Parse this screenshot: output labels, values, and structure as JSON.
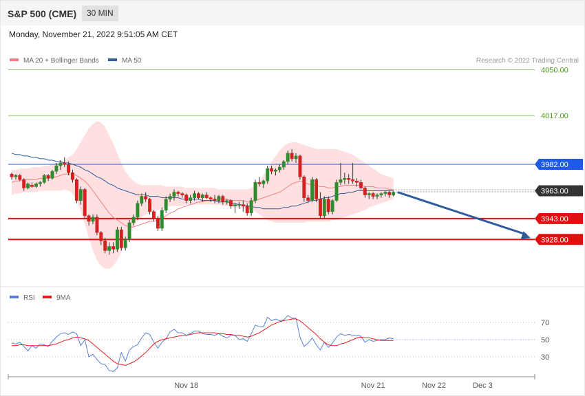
{
  "header": {
    "title": "S&P 500 (CME)",
    "timeframe": "30 MIN"
  },
  "timestamp": "Monday, November 21, 2022 9:51:05 AM CET",
  "legend": [
    {
      "label": "MA 20 + Bollinger Bands",
      "color": "#f08080"
    },
    {
      "label": "MA 50",
      "color": "#2f5a9e"
    }
  ],
  "copyright": "Research © 2022 Trading Central",
  "rsi_legend": [
    {
      "label": "RSI",
      "color": "#5b7fd6"
    },
    {
      "label": "9MA",
      "color": "#e02020"
    }
  ],
  "chart_data": {
    "type": "candlestick",
    "price_range": [
      3897,
      4070
    ],
    "levels": [
      {
        "value": 4050.0,
        "label": "4050.00",
        "kind": "resistance-green",
        "color": "#8cc26a"
      },
      {
        "value": 4017.0,
        "label": "4017.00",
        "kind": "resistance-green",
        "color": "#8cc26a"
      },
      {
        "value": 3982.0,
        "label": "3982.00",
        "kind": "pivot",
        "color": "#1e5ae6"
      },
      {
        "value": 3963.0,
        "label": "3963.00",
        "kind": "last-price",
        "color": "#333333"
      },
      {
        "value": 3943.0,
        "label": "3943.00",
        "kind": "support",
        "color": "#e01010"
      },
      {
        "value": 3928.0,
        "label": "3928.00",
        "kind": "support",
        "color": "#e01010"
      }
    ],
    "forecast_arrow": {
      "from": 3962,
      "to": 3929
    },
    "x_labels": [
      {
        "label": "Nov 18",
        "index": 43
      },
      {
        "label": "Nov 21",
        "index": 89
      },
      {
        "label": "Nov 22",
        "index": 104
      },
      {
        "label": "Dec 3",
        "index": 116
      }
    ],
    "candles": [
      [
        3975,
        3976,
        3971,
        3973
      ],
      [
        3973,
        3975,
        3971,
        3974
      ],
      [
        3974,
        3975,
        3970,
        3971
      ],
      [
        3971,
        3972,
        3963,
        3965
      ],
      [
        3965,
        3969,
        3964,
        3968
      ],
      [
        3967,
        3969,
        3965,
        3966
      ],
      [
        3966,
        3969,
        3965,
        3968
      ],
      [
        3968,
        3970,
        3966,
        3969
      ],
      [
        3969,
        3975,
        3968,
        3974
      ],
      [
        3974,
        3975,
        3970,
        3972
      ],
      [
        3972,
        3978,
        3971,
        3977
      ],
      [
        3977,
        3983,
        3975,
        3981
      ],
      [
        3981,
        3985,
        3978,
        3983
      ],
      [
        3983,
        3987,
        3980,
        3982
      ],
      [
        3982,
        3984,
        3974,
        3976
      ],
      [
        3976,
        3978,
        3969,
        3971
      ],
      [
        3971,
        3972,
        3954,
        3956
      ],
      [
        3956,
        3966,
        3953,
        3964
      ],
      [
        3964,
        3965,
        3943,
        3945
      ],
      [
        3945,
        3946,
        3938,
        3941
      ],
      [
        3941,
        3946,
        3939,
        3944
      ],
      [
        3944,
        3946,
        3931,
        3933
      ],
      [
        3933,
        3934,
        3924,
        3927
      ],
      [
        3927,
        3929,
        3918,
        3920
      ],
      [
        3920,
        3926,
        3917,
        3923
      ],
      [
        3923,
        3926,
        3918,
        3921
      ],
      [
        3921,
        3937,
        3919,
        3935
      ],
      [
        3935,
        3937,
        3920,
        3922
      ],
      [
        3922,
        3930,
        3920,
        3928
      ],
      [
        3928,
        3942,
        3926,
        3940
      ],
      [
        3940,
        3946,
        3938,
        3944
      ],
      [
        3944,
        3956,
        3942,
        3954
      ],
      [
        3954,
        3961,
        3952,
        3959
      ],
      [
        3959,
        3962,
        3955,
        3957
      ],
      [
        3957,
        3958,
        3946,
        3948
      ],
      [
        3948,
        3949,
        3941,
        3943
      ],
      [
        3943,
        3945,
        3934,
        3936
      ],
      [
        3936,
        3951,
        3934,
        3949
      ],
      [
        3949,
        3959,
        3947,
        3957
      ],
      [
        3957,
        3961,
        3955,
        3959
      ],
      [
        3959,
        3964,
        3956,
        3962
      ],
      [
        3962,
        3963,
        3959,
        3961
      ],
      [
        3961,
        3962,
        3958,
        3960
      ],
      [
        3960,
        3961,
        3954,
        3956
      ],
      [
        3956,
        3960,
        3954,
        3958
      ],
      [
        3958,
        3963,
        3956,
        3961
      ],
      [
        3961,
        3962,
        3957,
        3958
      ],
      [
        3958,
        3961,
        3955,
        3960
      ],
      [
        3960,
        3962,
        3957,
        3958
      ],
      [
        3958,
        3959,
        3955,
        3957
      ],
      [
        3957,
        3960,
        3954,
        3956
      ],
      [
        3956,
        3960,
        3954,
        3959
      ],
      [
        3959,
        3960,
        3953,
        3955
      ],
      [
        3955,
        3957,
        3953,
        3956
      ],
      [
        3956,
        3957,
        3950,
        3952
      ],
      [
        3952,
        3954,
        3947,
        3953
      ],
      [
        3953,
        3955,
        3950,
        3953
      ],
      [
        3953,
        3956,
        3948,
        3952
      ],
      [
        3952,
        3954,
        3945,
        3947
      ],
      [
        3947,
        3958,
        3945,
        3956
      ],
      [
        3956,
        3971,
        3954,
        3969
      ],
      [
        3969,
        3973,
        3966,
        3968
      ],
      [
        3968,
        3971,
        3965,
        3970
      ],
      [
        3970,
        3981,
        3968,
        3979
      ],
      [
        3979,
        3981,
        3975,
        3977
      ],
      [
        3977,
        3979,
        3974,
        3978
      ],
      [
        3978,
        3982,
        3976,
        3980
      ],
      [
        3980,
        3985,
        3978,
        3984
      ],
      [
        3984,
        3992,
        3982,
        3990
      ],
      [
        3990,
        3993,
        3984,
        3986
      ],
      [
        3986,
        3990,
        3983,
        3988
      ],
      [
        3988,
        3989,
        3971,
        3973
      ],
      [
        3973,
        3974,
        3955,
        3958
      ],
      [
        3958,
        3960,
        3954,
        3956
      ],
      [
        3956,
        3973,
        3955,
        3971
      ],
      [
        3971,
        3972,
        3955,
        3957
      ],
      [
        3957,
        3962,
        3943,
        3945
      ],
      [
        3945,
        3959,
        3943,
        3957
      ],
      [
        3957,
        3959,
        3946,
        3948
      ],
      [
        3948,
        3957,
        3946,
        3956
      ],
      [
        3956,
        3971,
        3955,
        3969
      ],
      [
        3969,
        3983,
        3967,
        3971
      ],
      [
        3971,
        3976,
        3968,
        3972
      ],
      [
        3972,
        3975,
        3968,
        3971
      ],
      [
        3971,
        3983,
        3968,
        3970
      ],
      [
        3970,
        3972,
        3966,
        3969
      ],
      [
        3969,
        3971,
        3964,
        3965
      ],
      [
        3965,
        3966,
        3958,
        3960
      ],
      [
        3960,
        3962,
        3957,
        3961
      ],
      [
        3961,
        3962,
        3957,
        3959
      ],
      [
        3959,
        3961,
        3957,
        3960
      ],
      [
        3960,
        3962,
        3958,
        3961
      ],
      [
        3961,
        3963,
        3959,
        3962
      ],
      [
        3962,
        3963,
        3958,
        3960
      ],
      [
        3960,
        3963,
        3959,
        3962
      ]
    ],
    "ma20": [
      3969,
      3970,
      3970,
      3971,
      3971,
      3971,
      3971,
      3972,
      3972,
      3972,
      3973,
      3973,
      3974,
      3975,
      3975,
      3975,
      3974,
      3972,
      3970,
      3967,
      3963,
      3959,
      3955,
      3951,
      3947,
      3944,
      3942,
      3940,
      3938,
      3937,
      3937,
      3938,
      3939,
      3940,
      3941,
      3941,
      3942,
      3943,
      3945,
      3947,
      3948,
      3950,
      3951,
      3952,
      3953,
      3954,
      3955,
      3955,
      3956,
      3956,
      3957,
      3957,
      3957,
      3957,
      3956,
      3956,
      3956,
      3956,
      3955,
      3955,
      3956,
      3957,
      3958,
      3959,
      3960,
      3961,
      3962,
      3964,
      3966,
      3968,
      3969,
      3970,
      3969,
      3968,
      3967,
      3967,
      3966,
      3966,
      3965,
      3965,
      3966,
      3966,
      3967,
      3967,
      3967,
      3967,
      3967,
      3966,
      3966,
      3966,
      3965,
      3965,
      3965,
      3964,
      3964
    ],
    "ma50": [
      3990,
      3989,
      3989,
      3988,
      3988,
      3987,
      3987,
      3986,
      3986,
      3985,
      3985,
      3984,
      3984,
      3983,
      3983,
      3982,
      3981,
      3980,
      3978,
      3977,
      3975,
      3973,
      3972,
      3970,
      3968,
      3967,
      3965,
      3964,
      3963,
      3962,
      3961,
      3960,
      3960,
      3960,
      3959,
      3959,
      3959,
      3958,
      3958,
      3958,
      3958,
      3958,
      3957,
      3957,
      3957,
      3957,
      3957,
      3956,
      3956,
      3956,
      3956,
      3955,
      3955,
      3955,
      3954,
      3954,
      3953,
      3953,
      3952,
      3952,
      3951,
      3951,
      3950,
      3950,
      3950,
      3950,
      3950,
      3951,
      3951,
      3952,
      3952,
      3953,
      3954,
      3955,
      3956,
      3956,
      3957,
      3958,
      3958,
      3959,
      3960,
      3961,
      3961,
      3962,
      3962,
      3963,
      3963,
      3963,
      3963,
      3963,
      3963,
      3963,
      3963,
      3963,
      3963
    ],
    "bb_upper": [
      3978,
      3978,
      3979,
      3979,
      3979,
      3980,
      3980,
      3980,
      3981,
      3981,
      3982,
      3983,
      3984,
      3985,
      3987,
      3989,
      3993,
      3998,
      4003,
      4008,
      4011,
      4013,
      4012,
      4009,
      4003,
      3997,
      3990,
      3983,
      3977,
      3973,
      3970,
      3968,
      3967,
      3967,
      3967,
      3967,
      3967,
      3967,
      3966,
      3966,
      3966,
      3966,
      3966,
      3965,
      3965,
      3965,
      3965,
      3965,
      3965,
      3965,
      3965,
      3964,
      3964,
      3964,
      3964,
      3964,
      3964,
      3964,
      3964,
      3965,
      3967,
      3970,
      3974,
      3979,
      3984,
      3988,
      3992,
      3995,
      3997,
      3998,
      3998,
      3997,
      3996,
      3995,
      3994,
      3993,
      3993,
      3993,
      3993,
      3993,
      3993,
      3992,
      3991,
      3990,
      3989,
      3987,
      3985,
      3983,
      3981,
      3979,
      3977,
      3975,
      3974,
      3973,
      3972
    ],
    "bb_lower": [
      3960,
      3961,
      3961,
      3962,
      3962,
      3962,
      3962,
      3963,
      3963,
      3963,
      3963,
      3963,
      3963,
      3964,
      3963,
      3961,
      3956,
      3948,
      3939,
      3929,
      3920,
      3913,
      3909,
      3907,
      3907,
      3909,
      3913,
      3919,
      3926,
      3933,
      3937,
      3941,
      3944,
      3946,
      3947,
      3948,
      3949,
      3950,
      3951,
      3952,
      3952,
      3952,
      3952,
      3953,
      3953,
      3953,
      3953,
      3953,
      3953,
      3953,
      3953,
      3953,
      3952,
      3952,
      3952,
      3951,
      3951,
      3950,
      3950,
      3949,
      3948,
      3946,
      3944,
      3942,
      3941,
      3940,
      3940,
      3940,
      3940,
      3940,
      3940,
      3940,
      3940,
      3941,
      3941,
      3941,
      3941,
      3941,
      3941,
      3942,
      3942,
      3943,
      3944,
      3945,
      3946,
      3947,
      3948,
      3949,
      3951,
      3952,
      3953,
      3954,
      3955,
      3956,
      3957
    ],
    "rsi": {
      "range": [
        10,
        90
      ],
      "ticks": [
        70,
        50,
        30
      ],
      "rsi": [
        46,
        45,
        47,
        42,
        37,
        43,
        40,
        45,
        44,
        42,
        48,
        53,
        57,
        58,
        56,
        59,
        57,
        43,
        50,
        30,
        33,
        27,
        22,
        21,
        14,
        13,
        17,
        35,
        25,
        38,
        42,
        44,
        52,
        58,
        56,
        47,
        40,
        47,
        51,
        59,
        62,
        58,
        58,
        55,
        57,
        60,
        60,
        57,
        56,
        56,
        55,
        57,
        54,
        52,
        55,
        55,
        50,
        51,
        48,
        57,
        67,
        65,
        65,
        76,
        72,
        74,
        72,
        73,
        78,
        75,
        75,
        53,
        42,
        46,
        52,
        44,
        38,
        47,
        41,
        46,
        53,
        57,
        55,
        56,
        55,
        55,
        54,
        47,
        50,
        48,
        49,
        50,
        50,
        52,
        51
      ],
      "ma9": [
        43,
        43,
        44,
        44,
        43,
        43,
        43,
        43,
        43,
        43,
        44,
        45,
        47,
        49,
        50,
        52,
        53,
        52,
        51,
        49,
        45,
        41,
        37,
        33,
        29,
        25,
        22,
        21,
        20,
        22,
        24,
        27,
        31,
        35,
        40,
        45,
        48,
        50,
        51,
        52,
        53,
        54,
        55,
        55,
        56,
        57,
        58,
        58,
        58,
        58,
        58,
        57,
        57,
        56,
        56,
        55,
        55,
        54,
        53,
        54,
        56,
        58,
        61,
        64,
        67,
        69,
        71,
        72,
        73,
        74,
        74,
        72,
        68,
        64,
        60,
        56,
        51,
        47,
        44,
        43,
        43,
        45,
        46,
        48,
        50,
        52,
        53,
        52,
        52,
        51,
        50,
        49,
        49,
        49,
        49
      ]
    }
  }
}
